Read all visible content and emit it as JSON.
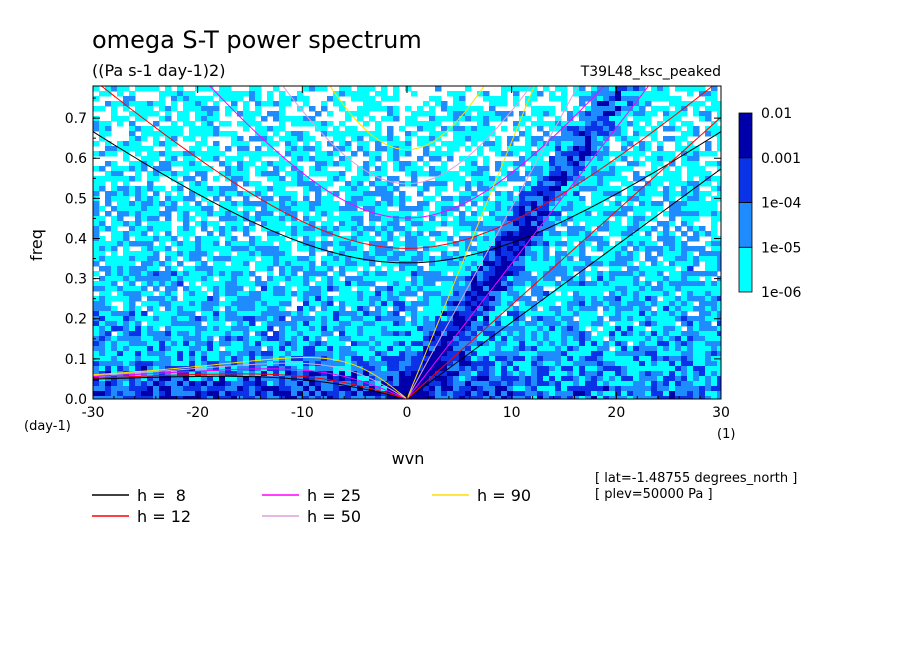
{
  "chart_data": {
    "type": "heatmap",
    "title": "omega S-T power spectrum",
    "subtitle": "((Pa s-1 day-1)2)",
    "run_label": "T39L48_ksc_peaked",
    "xlabel": "wvn",
    "ylabel": "freq",
    "x_unit": "(1)",
    "y_unit": "(day-1)",
    "xlim": [
      -30,
      30
    ],
    "ylim": [
      0,
      0.78
    ],
    "x_ticks": [
      -30,
      -20,
      -10,
      0,
      10,
      20,
      30
    ],
    "x_tick_labels": [
      "-30",
      "-20",
      "-10",
      "0",
      "10",
      "20",
      "30"
    ],
    "y_ticks": [
      0.0,
      0.1,
      0.2,
      0.3,
      0.4,
      0.5,
      0.6,
      0.7
    ],
    "y_tick_labels": [
      "0.0",
      "0.1",
      "0.2",
      "0.3",
      "0.4",
      "0.5",
      "0.6",
      "0.7"
    ],
    "colorbar": {
      "levels": [
        "1e-06",
        "1e-05",
        "1e-04",
        "0.001",
        "0.01"
      ],
      "colors": [
        "#00ffff",
        "#1e8cff",
        "#0a32e6",
        "#0000aa",
        "#4600b4"
      ]
    },
    "dispersion_curves": [
      {
        "label": "h =  8",
        "equivalent_depth_m": 8,
        "color": "#000000"
      },
      {
        "label": "h = 12",
        "equivalent_depth_m": 12,
        "color": "#ff0000"
      },
      {
        "label": "h = 25",
        "equivalent_depth_m": 25,
        "color": "#ff00ff"
      },
      {
        "label": "h = 50",
        "equivalent_depth_m": 50,
        "color": "#dda0dd"
      },
      {
        "label": "h = 90",
        "equivalent_depth_m": 90,
        "color": "#ffdd00"
      }
    ],
    "info": [
      "[ lat=-1.48755 degrees_north ]",
      "[ plev=50000 Pa ]"
    ],
    "grid": false,
    "legend_position": "bottom-left"
  }
}
